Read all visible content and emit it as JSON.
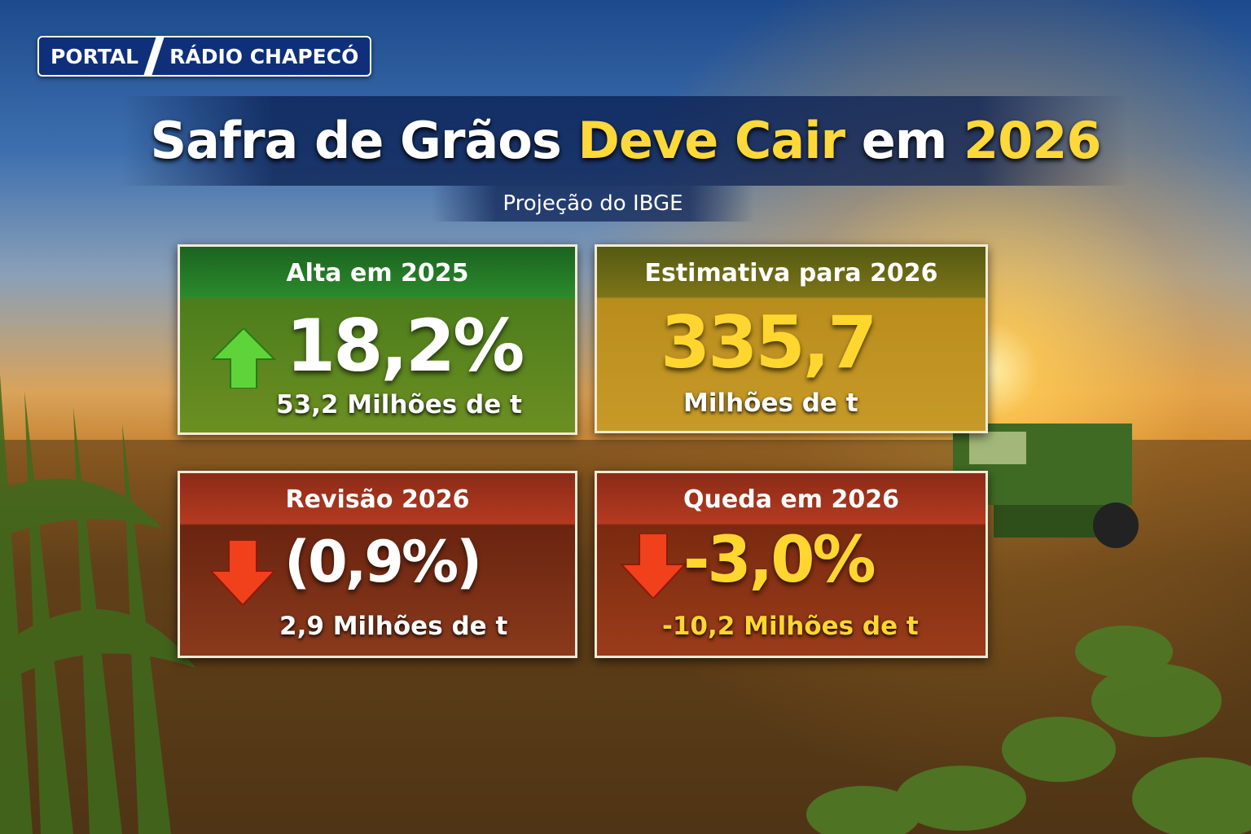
{
  "brand": {
    "left": "PORTAL",
    "right": "RÁDIO CHAPECÓ"
  },
  "header": {
    "title_parts": [
      "Safra de Grãos",
      "Deve Cair",
      "em",
      "2026"
    ],
    "subtitle": "Projeção do IBGE"
  },
  "cards": [
    {
      "label": "Alta em 2025",
      "value": "18,2%",
      "sub": "53,2 Milhões de t"
    },
    {
      "label": "Estimativa para 2026",
      "value": "335,7",
      "sub": "Milhões de t"
    },
    {
      "label": "Revisão 2026",
      "value": "(0,9%)",
      "sub": "2,9 Milhões de t"
    },
    {
      "label": "Queda em 2026",
      "value": "-3,0%",
      "sub": "-10,2 Milhões de t"
    }
  ]
}
